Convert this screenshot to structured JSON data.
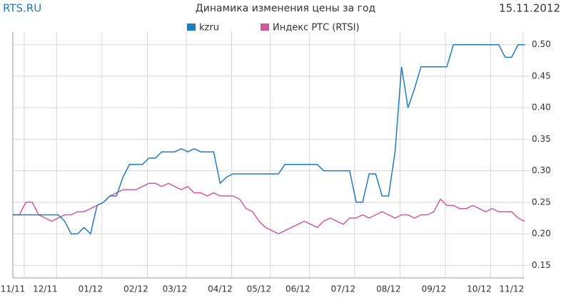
{
  "chart_data": {
    "type": "line",
    "source": "RTS.RU",
    "title": "Динамика изменения цены за год",
    "date": "15.11.2012",
    "categories": [
      "11/11",
      null,
      null,
      null,
      null,
      "12/11",
      null,
      null,
      null,
      null,
      null,
      null,
      "01/12",
      null,
      null,
      null,
      null,
      null,
      null,
      "02/12",
      null,
      null,
      null,
      null,
      null,
      "03/12",
      null,
      null,
      null,
      null,
      null,
      null,
      "04/12",
      null,
      null,
      null,
      null,
      null,
      "05/12",
      null,
      null,
      null,
      null,
      null,
      "06/12",
      null,
      null,
      null,
      null,
      null,
      null,
      "07/12",
      null,
      null,
      null,
      null,
      null,
      null,
      "08/12",
      null,
      null,
      null,
      null,
      null,
      null,
      "09/12",
      null,
      null,
      null,
      null,
      null,
      null,
      "10/12",
      null,
      null,
      null,
      null,
      "11/12",
      null,
      null
    ],
    "series": [
      {
        "name": "kzru",
        "color": "#1f7bc0",
        "values": [
          0.23,
          0.23,
          0.23,
          0.23,
          0.23,
          0.23,
          0.23,
          0.23,
          0.22,
          0.2,
          0.2,
          0.21,
          0.2,
          0.245,
          0.25,
          0.26,
          0.26,
          0.29,
          0.31,
          0.31,
          0.31,
          0.32,
          0.32,
          0.33,
          0.33,
          0.33,
          0.335,
          0.33,
          0.335,
          0.33,
          0.33,
          0.33,
          0.28,
          0.29,
          0.295,
          0.295,
          0.295,
          0.295,
          0.295,
          0.295,
          0.295,
          0.295,
          0.31,
          0.31,
          0.31,
          0.31,
          0.31,
          0.31,
          0.3,
          0.3,
          0.3,
          0.3,
          0.3,
          0.25,
          0.25,
          0.295,
          0.295,
          0.26,
          0.26,
          0.33,
          0.465,
          0.4,
          0.43,
          0.465,
          0.465,
          0.465,
          0.465,
          0.465,
          0.5,
          0.5,
          0.5,
          0.5,
          0.5,
          0.5,
          0.5,
          0.5,
          0.48,
          0.48,
          0.5,
          0.5
        ]
      },
      {
        "name": "Индекс РТС (RTSI)",
        "color": "#d05a9a",
        "values": [
          0.23,
          0.23,
          0.25,
          0.25,
          0.23,
          0.225,
          0.22,
          0.225,
          0.23,
          0.23,
          0.235,
          0.235,
          0.24,
          0.245,
          0.25,
          0.26,
          0.265,
          0.27,
          0.27,
          0.27,
          0.275,
          0.28,
          0.28,
          0.275,
          0.28,
          0.275,
          0.27,
          0.275,
          0.265,
          0.265,
          0.26,
          0.265,
          0.26,
          0.26,
          0.26,
          0.255,
          0.24,
          0.235,
          0.22,
          0.21,
          0.205,
          0.2,
          0.205,
          0.21,
          0.215,
          0.22,
          0.215,
          0.21,
          0.22,
          0.225,
          0.22,
          0.215,
          0.225,
          0.225,
          0.23,
          0.225,
          0.23,
          0.235,
          0.23,
          0.225,
          0.23,
          0.23,
          0.225,
          0.23,
          0.23,
          0.235,
          0.255,
          0.245,
          0.245,
          0.24,
          0.24,
          0.245,
          0.24,
          0.235,
          0.24,
          0.235,
          0.235,
          0.235,
          0.225,
          0.22
        ]
      }
    ],
    "ylim": [
      0.13,
      0.52
    ],
    "yticks": [
      0.15,
      {
        "value": 0.2,
        "label": "0.20"
      },
      0.25,
      {
        "value": 0.3,
        "label": "0.30"
      },
      0.35,
      {
        "value": 0.4,
        "label": "0.40"
      },
      0.45,
      {
        "value": 0.5,
        "label": "0.50"
      }
    ],
    "grid": true
  }
}
